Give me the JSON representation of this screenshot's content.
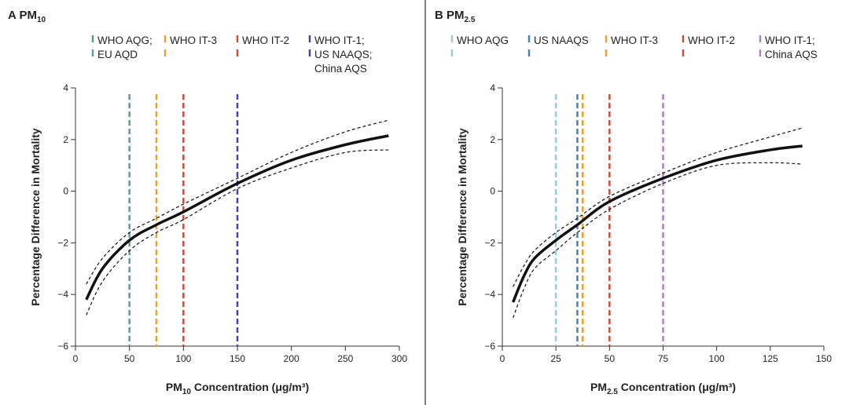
{
  "chart_data": [
    {
      "type": "line",
      "panel_letter": "A",
      "title": "PM",
      "title_sub": "10",
      "xlabel_pre": "PM",
      "xlabel_sub": "10",
      "xlabel_post": " Concentration (μg/m³)",
      "ylabel": "Percentage Difference in Mortality",
      "xlim": [
        0,
        300
      ],
      "ylim": [
        -6,
        4
      ],
      "xticks": [
        0,
        50,
        100,
        150,
        200,
        250,
        300
      ],
      "yticks": [
        -6,
        -4,
        -2,
        0,
        2,
        4
      ],
      "yticklabels": [
        "−6",
        "−4",
        "−2",
        "0",
        "2",
        "4"
      ],
      "x": [
        10,
        25,
        50,
        75,
        100,
        150,
        200,
        250,
        290
      ],
      "central": [
        -4.2,
        -3.0,
        -1.9,
        -1.3,
        -0.8,
        0.3,
        1.2,
        1.8,
        2.15
      ],
      "upper": [
        -3.6,
        -2.6,
        -1.6,
        -1.05,
        -0.5,
        0.5,
        1.5,
        2.3,
        2.75
      ],
      "lower": [
        -4.8,
        -3.5,
        -2.3,
        -1.6,
        -1.1,
        0.1,
        0.9,
        1.5,
        1.6
      ],
      "thresholds": [
        {
          "x": 50,
          "color": "#5a9aa8",
          "label": [
            "WHO AQG;",
            "EU AQD"
          ]
        },
        {
          "x": 75,
          "color": "#e8a030",
          "label": [
            "WHO IT-3",
            ""
          ]
        },
        {
          "x": 100,
          "color": "#c0503a",
          "label": [
            "WHO IT-2",
            ""
          ]
        },
        {
          "x": 150,
          "color": "#5040a0",
          "label": [
            "WHO IT-1;",
            "US NAAQS;",
            "China AQS"
          ]
        }
      ]
    },
    {
      "type": "line",
      "panel_letter": "B",
      "title": "PM",
      "title_sub": "2.5",
      "xlabel_pre": "PM",
      "xlabel_sub": "2.5",
      "xlabel_post": " Concentration (μg/m³)",
      "ylabel": "Percentage Difference in Mortality",
      "xlim": [
        0,
        150
      ],
      "ylim": [
        -6,
        4
      ],
      "xticks": [
        0,
        25,
        50,
        75,
        100,
        125,
        150
      ],
      "yticks": [
        -6,
        -4,
        -2,
        0,
        2,
        4
      ],
      "yticklabels": [
        "−6",
        "−4",
        "−2",
        "0",
        "2",
        "4"
      ],
      "x": [
        5,
        10,
        15,
        25,
        35,
        50,
        75,
        100,
        125,
        140
      ],
      "central": [
        -4.3,
        -3.3,
        -2.6,
        -1.9,
        -1.3,
        -0.4,
        0.5,
        1.2,
        1.6,
        1.75
      ],
      "upper": [
        -3.7,
        -2.9,
        -2.3,
        -1.6,
        -1.05,
        -0.2,
        0.7,
        1.5,
        2.1,
        2.45
      ],
      "lower": [
        -4.9,
        -3.8,
        -3.0,
        -2.3,
        -1.6,
        -0.7,
        0.3,
        1.0,
        1.1,
        1.05
      ],
      "thresholds": [
        {
          "x": 25,
          "color": "#9ccad8",
          "label": [
            "WHO AQG",
            ""
          ]
        },
        {
          "x": 35,
          "color": "#4a80b0",
          "label": [
            "US NAAQS",
            ""
          ]
        },
        {
          "x": 37.5,
          "color": "#e8a030",
          "label": [
            "WHO IT-3",
            ""
          ]
        },
        {
          "x": 50,
          "color": "#c0503a",
          "label": [
            "WHO IT-2",
            ""
          ]
        },
        {
          "x": 75,
          "color": "#b080c0",
          "label": [
            "WHO IT-1;",
            "China AQS"
          ]
        }
      ]
    }
  ]
}
